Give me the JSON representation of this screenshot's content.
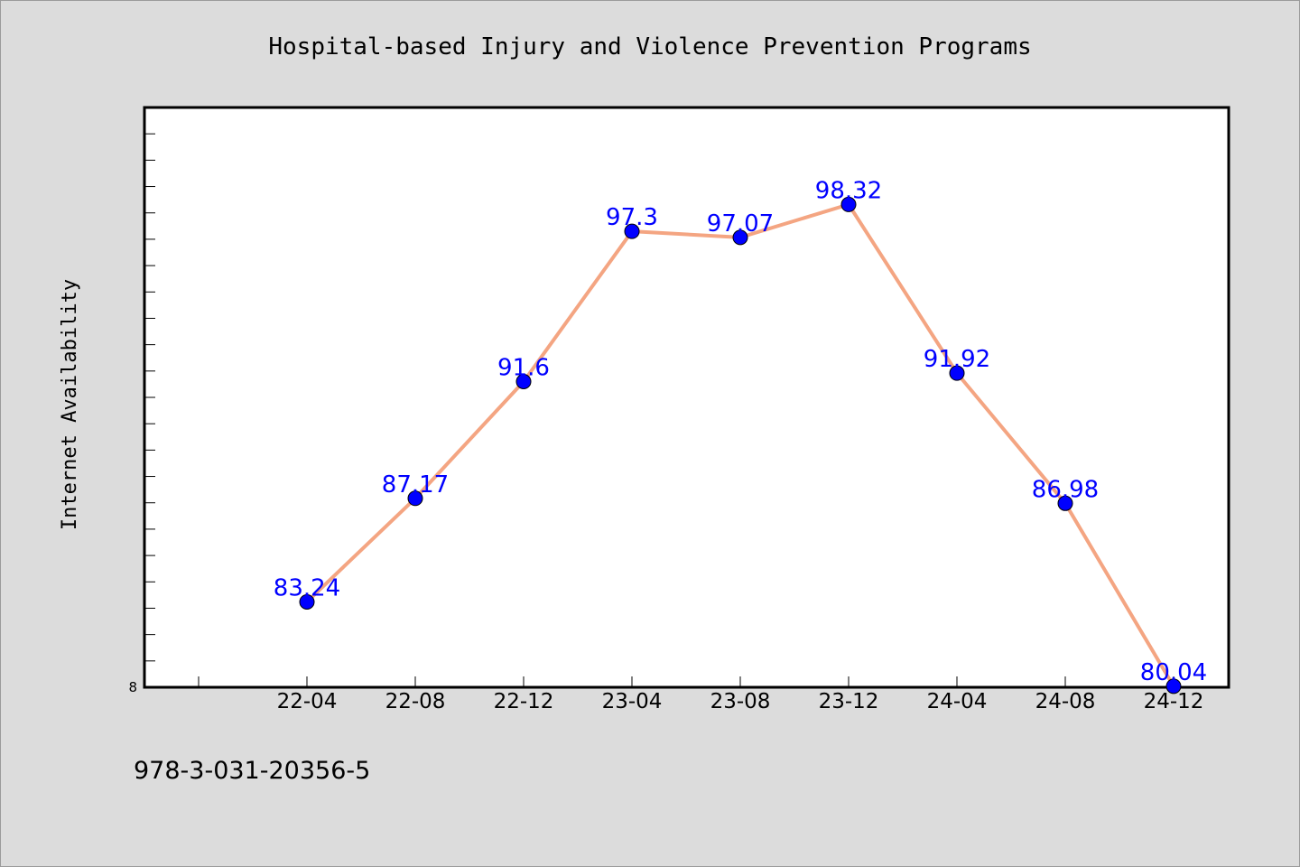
{
  "chart_data": {
    "type": "line",
    "title": "Hospital-based Injury and Violence Prevention Programs",
    "xlabel": "",
    "ylabel": "Internet Availability",
    "categories": [
      "22-04",
      "22-08",
      "22-12",
      "23-04",
      "23-08",
      "23-12",
      "24-04",
      "24-08",
      "24-12"
    ],
    "series": [
      {
        "values": [
          83.24,
          87.17,
          91.6,
          97.3,
          97.07,
          98.32,
          91.92,
          86.98,
          80.04
        ]
      }
    ],
    "data_labels": [
      "83.24",
      "87.17",
      "91.6",
      "97.3",
      "97.07",
      "98.32",
      "91.92",
      "86.98",
      "80.04"
    ],
    "ylim": [
      80,
      102
    ],
    "y_tick_label": "8",
    "line_color": "#f4a582",
    "marker_color": "#0000ff",
    "label_color": "#0000ff",
    "grid": false,
    "legend": "none"
  },
  "footer": {
    "isbn": "978-3-031-20356-5"
  }
}
